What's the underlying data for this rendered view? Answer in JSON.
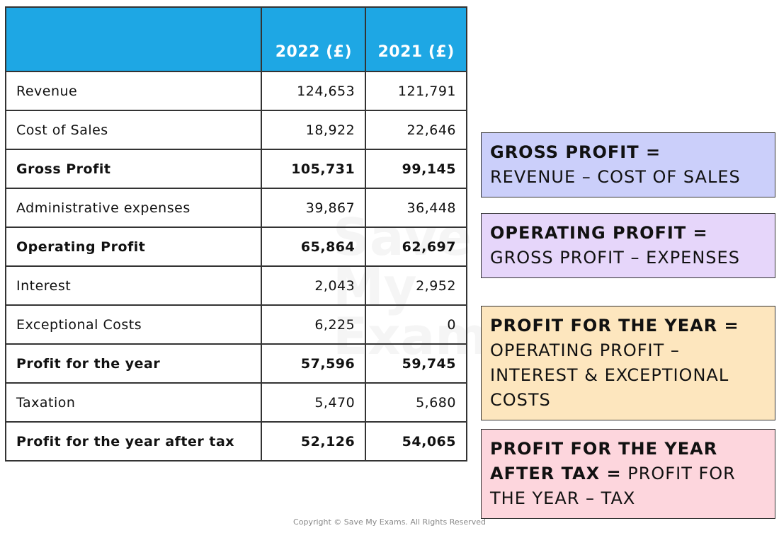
{
  "table": {
    "header": [
      "",
      "2022 (£)",
      "2021 (£)"
    ],
    "rows": [
      {
        "label": "Revenue",
        "values": [
          "124,653",
          "121,791"
        ],
        "bold": false
      },
      {
        "label": "Cost of Sales",
        "values": [
          "18,922",
          "22,646"
        ],
        "bold": false
      },
      {
        "label": "Gross Profit",
        "values": [
          "105,731",
          "99,145"
        ],
        "bold": true
      },
      {
        "label": "Administrative expenses",
        "values": [
          "39,867",
          "36,448"
        ],
        "bold": false
      },
      {
        "label": "Operating Profit",
        "values": [
          "65,864",
          "62,697"
        ],
        "bold": true
      },
      {
        "label": "Interest",
        "values": [
          "2,043",
          "2,952"
        ],
        "bold": false
      },
      {
        "label": "Exceptional Costs",
        "values": [
          "6,225",
          "0"
        ],
        "bold": false
      },
      {
        "label": "Profit for the year",
        "values": [
          "57,596",
          "59,745"
        ],
        "bold": true
      },
      {
        "label": "Taxation",
        "values": [
          "5,470",
          "5,680"
        ],
        "bold": false
      },
      {
        "label": "Profit for the year after tax",
        "values": [
          "52,126",
          "54,065"
        ],
        "bold": true
      }
    ]
  },
  "notes": [
    {
      "title": "GROSS PROFIT =",
      "body": "REVENUE – COST OF SALES",
      "color": "#cbcffa"
    },
    {
      "title": "OPERATING PROFIT =",
      "body": "GROSS PROFIT – EXPENSES",
      "color": "#e6d6fa"
    },
    {
      "title": "PROFIT FOR THE YEAR =",
      "body": "OPERATING PROFIT – INTEREST & EXCEPTIONAL COSTS",
      "color": "#fde6be"
    },
    {
      "title": "PROFIT FOR THE YEAR AFTER TAX =",
      "body": "PROFIT FOR THE YEAR – TAX",
      "color": "#fdd6dd"
    }
  ],
  "watermark": "Save My Exams",
  "copyright": "Copyright © Save My Exams. All Rights Reserved"
}
